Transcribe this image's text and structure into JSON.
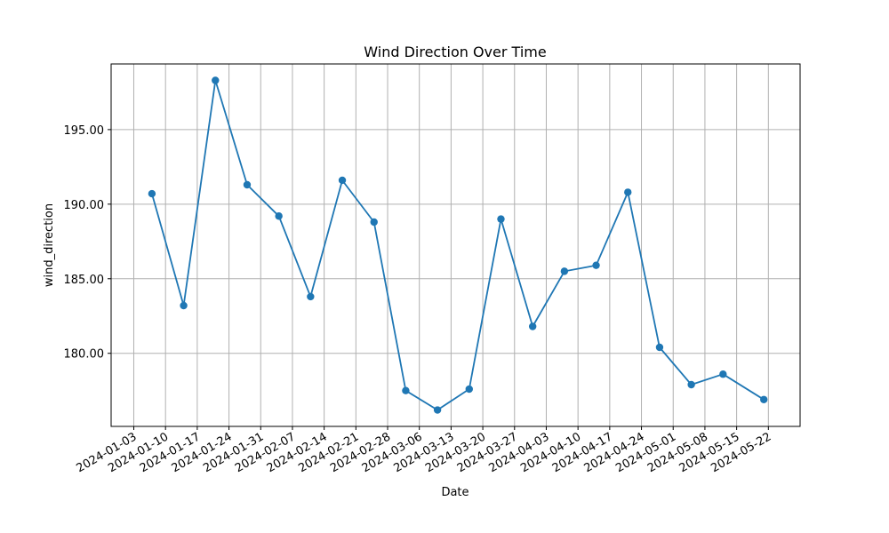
{
  "chart_data": {
    "type": "line",
    "title": "Wind Direction Over Time",
    "xlabel": "Date",
    "ylabel": "wind_direction",
    "grid": true,
    "x_tick_labels": [
      "2024-01-03",
      "2024-01-10",
      "2024-01-17",
      "2024-01-24",
      "2024-01-31",
      "2024-02-07",
      "2024-02-14",
      "2024-02-21",
      "2024-02-28",
      "2024-03-06",
      "2024-03-13",
      "2024-03-20",
      "2024-03-27",
      "2024-04-03",
      "2024-04-10",
      "2024-04-17",
      "2024-04-24",
      "2024-05-01",
      "2024-05-08",
      "2024-05-15",
      "2024-05-22"
    ],
    "y_tick_labels": [
      "180.00",
      "185.00",
      "190.00",
      "195.00"
    ],
    "y_ticks": [
      180,
      185,
      190,
      195
    ],
    "xlim": [
      "2023-12-29",
      "2024-05-29"
    ],
    "ylim": [
      175.1,
      199.4
    ],
    "color": "#1f77b4",
    "series": [
      {
        "x": [
          "2024-01-07",
          "2024-01-14",
          "2024-01-21",
          "2024-01-28",
          "2024-02-04",
          "2024-02-11",
          "2024-02-18",
          "2024-02-25",
          "2024-03-03",
          "2024-03-10",
          "2024-03-17",
          "2024-03-24",
          "2024-03-31",
          "2024-04-07",
          "2024-04-14",
          "2024-04-21",
          "2024-04-28",
          "2024-05-05",
          "2024-05-12",
          "2024-05-21"
        ],
        "values": [
          190.7,
          183.2,
          198.3,
          191.3,
          189.2,
          183.8,
          191.6,
          188.8,
          177.5,
          176.2,
          177.6,
          189.0,
          181.8,
          185.5,
          185.9,
          190.8,
          180.4,
          177.9,
          178.6,
          176.9
        ]
      }
    ]
  }
}
